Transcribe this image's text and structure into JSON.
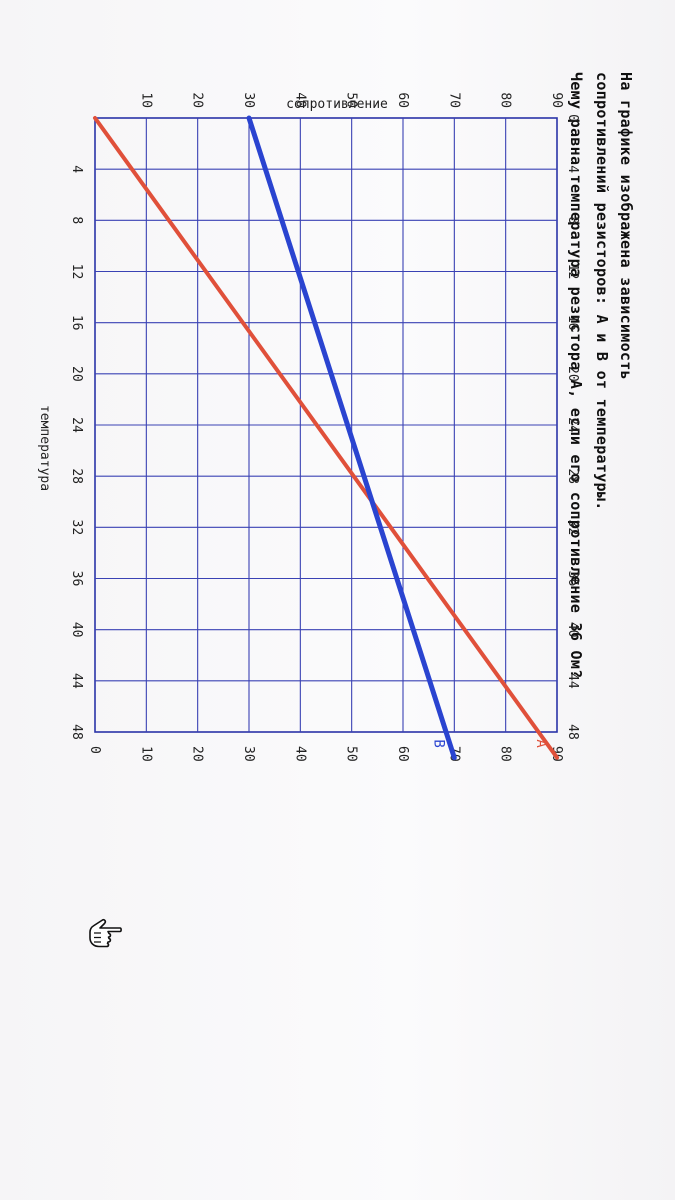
{
  "question": {
    "line1": "На графике изображена зависимость",
    "line2": "сопротивлений резисторов: А и В от температуры.",
    "line3": "Чему равна температура резистора А, если его сопротивление 36 Ом?"
  },
  "chart_data": {
    "type": "line",
    "xlabel": "температура",
    "ylabel": "сопротивление",
    "xlim": [
      0,
      48
    ],
    "ylim": [
      0,
      90
    ],
    "x_ticks_top": [
      0,
      4,
      8,
      12,
      16,
      20,
      24,
      28,
      32,
      36,
      40,
      44,
      48
    ],
    "x_ticks_bottom": [
      4,
      8,
      12,
      16,
      20,
      24,
      28,
      32,
      36,
      40,
      44,
      48
    ],
    "y_ticks_left": [
      10,
      20,
      30,
      40,
      50,
      60,
      70,
      80,
      90
    ],
    "y_ticks_right": [
      0,
      10,
      20,
      30,
      40,
      50,
      60,
      70,
      80,
      90
    ],
    "grid": true,
    "series": [
      {
        "name": "А",
        "color": "#e0503a",
        "points": [
          [
            0,
            0
          ],
          [
            50,
            90
          ]
        ]
      },
      {
        "name": "В",
        "color": "#2a44d0",
        "points": [
          [
            0,
            30
          ],
          [
            50,
            70
          ]
        ]
      }
    ]
  },
  "cursor": {
    "icon": "hand-pointer-icon"
  }
}
